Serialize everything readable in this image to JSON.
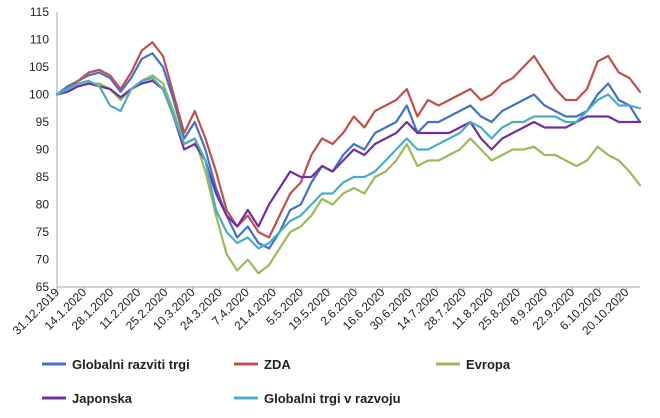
{
  "chart_data": {
    "type": "line",
    "title": "",
    "xlabel": "",
    "ylabel": "",
    "ylim": [
      65,
      115
    ],
    "yticks": [
      65,
      70,
      75,
      80,
      85,
      90,
      95,
      100,
      105,
      110,
      115
    ],
    "grid": false,
    "legend_placement": "bottom",
    "xtick_labels": [
      "31.12.2019",
      "14.1.2020",
      "28.1.2020",
      "11.2.2020",
      "25.2.2020",
      "10.3.2020",
      "24.3.2020",
      "7.4.2020",
      "21.4.2020",
      "5.5.2020",
      "19.5.2020",
      "2.6.2020",
      "16.6.2020",
      "30.6.2020",
      "14.7.2020",
      "28.7.2020",
      "11.8.2020",
      "25.8.2020",
      "8.9.2020",
      "22.9.2020",
      "6.10.2020",
      "20.10.2020"
    ],
    "x": [
      "31.12.2019",
      "2.1.2020",
      "9.1.2020",
      "14.1.2020",
      "21.1.2020",
      "28.1.2020",
      "31.1.2020",
      "4.2.2020",
      "11.2.2020",
      "19.2.2020",
      "21.2.2020",
      "25.2.2020",
      "28.2.2020",
      "3.3.2020",
      "6.3.2020",
      "10.3.2020",
      "12.3.2020",
      "16.3.2020",
      "18.3.2020",
      "20.3.2020",
      "23.3.2020",
      "24.3.2020",
      "26.3.2020",
      "31.3.2020",
      "7.4.2020",
      "14.4.2020",
      "21.4.2020",
      "28.4.2020",
      "5.5.2020",
      "12.5.2020",
      "19.5.2020",
      "26.5.2020",
      "2.6.2020",
      "8.6.2020",
      "11.6.2020",
      "16.6.2020",
      "23.6.2020",
      "30.6.2020",
      "7.7.2020",
      "14.7.2020",
      "21.7.2020",
      "28.7.2020",
      "4.8.2020",
      "11.8.2020",
      "18.8.2020",
      "25.8.2020",
      "2.9.2020",
      "8.9.2020",
      "15.9.2020",
      "22.9.2020",
      "29.9.2020",
      "6.10.2020",
      "13.10.2020",
      "20.10.2020",
      "26.10.2020",
      "30.10.2020"
    ],
    "series": [
      {
        "name": "Globalni razviti trgi",
        "color": "#4472C4",
        "values": [
          100,
          101.5,
          102.5,
          103.5,
          104,
          103,
          100.5,
          103,
          106.5,
          107.5,
          105,
          99,
          92,
          95,
          90,
          83,
          78,
          74,
          76,
          73,
          72,
          75,
          79,
          80,
          84,
          87,
          86,
          89,
          91,
          90,
          93,
          94,
          95,
          98,
          93,
          95,
          95,
          96,
          97,
          98,
          96,
          95,
          97,
          98,
          99,
          100,
          98,
          97,
          96,
          96,
          97,
          100,
          102,
          99,
          98,
          95
        ]
      },
      {
        "name": "ZDA",
        "color": "#C0504D",
        "values": [
          100,
          101,
          102.5,
          104,
          104.5,
          103.5,
          101,
          104,
          108,
          109.5,
          107,
          100,
          93,
          97,
          92,
          86,
          79,
          76,
          78,
          75,
          74,
          78,
          82,
          84,
          89,
          92,
          91,
          93,
          96,
          94,
          97,
          98,
          99,
          101,
          96,
          99,
          98,
          99,
          100,
          101,
          99,
          100,
          102,
          103,
          105,
          107,
          104,
          101,
          99,
          99,
          101,
          106,
          107,
          104,
          103,
          100.5
        ]
      },
      {
        "name": "Evropa",
        "color": "#9BBB59",
        "values": [
          100,
          101,
          101.5,
          102,
          102,
          101,
          99,
          101,
          102.5,
          103.5,
          102,
          97,
          91,
          92,
          86,
          78,
          71,
          68,
          70,
          67.5,
          69,
          72,
          75,
          76,
          78,
          81,
          80,
          82,
          83,
          82,
          85,
          86,
          88,
          91,
          87,
          88,
          88,
          89,
          90,
          92,
          90,
          88,
          89,
          90,
          90,
          90.5,
          89,
          89,
          88,
          87,
          88,
          90.5,
          89,
          88,
          86,
          83.5
        ]
      },
      {
        "name": "Japonska",
        "color": "#7030A0",
        "values": [
          100,
          100.5,
          101.5,
          102,
          101.5,
          101,
          99.5,
          101,
          102,
          102.5,
          101,
          96,
          90,
          91,
          88,
          82,
          78,
          76,
          79,
          76,
          80,
          83,
          86,
          85,
          85,
          87,
          86,
          88,
          90,
          89,
          91,
          92,
          93,
          95,
          93,
          93,
          93,
          93,
          94,
          95,
          92,
          90,
          92,
          93,
          94,
          95,
          94,
          94,
          94,
          95,
          96,
          96,
          96,
          95,
          95,
          95
        ]
      },
      {
        "name": "Globalni trgi v razvoju",
        "color": "#4BACC6",
        "values": [
          100,
          101,
          102,
          102.5,
          101.5,
          98,
          97,
          101,
          102.5,
          103,
          101,
          96,
          91,
          92,
          88,
          79,
          75,
          73,
          74,
          72,
          73,
          75,
          77,
          78,
          80,
          82,
          82,
          84,
          85,
          85,
          86,
          88,
          90,
          92,
          90,
          90,
          91,
          92,
          93,
          95,
          94,
          92,
          94,
          95,
          95,
          96,
          96,
          96,
          95,
          95,
          97,
          99,
          100,
          98,
          98,
          97.5
        ]
      }
    ]
  }
}
